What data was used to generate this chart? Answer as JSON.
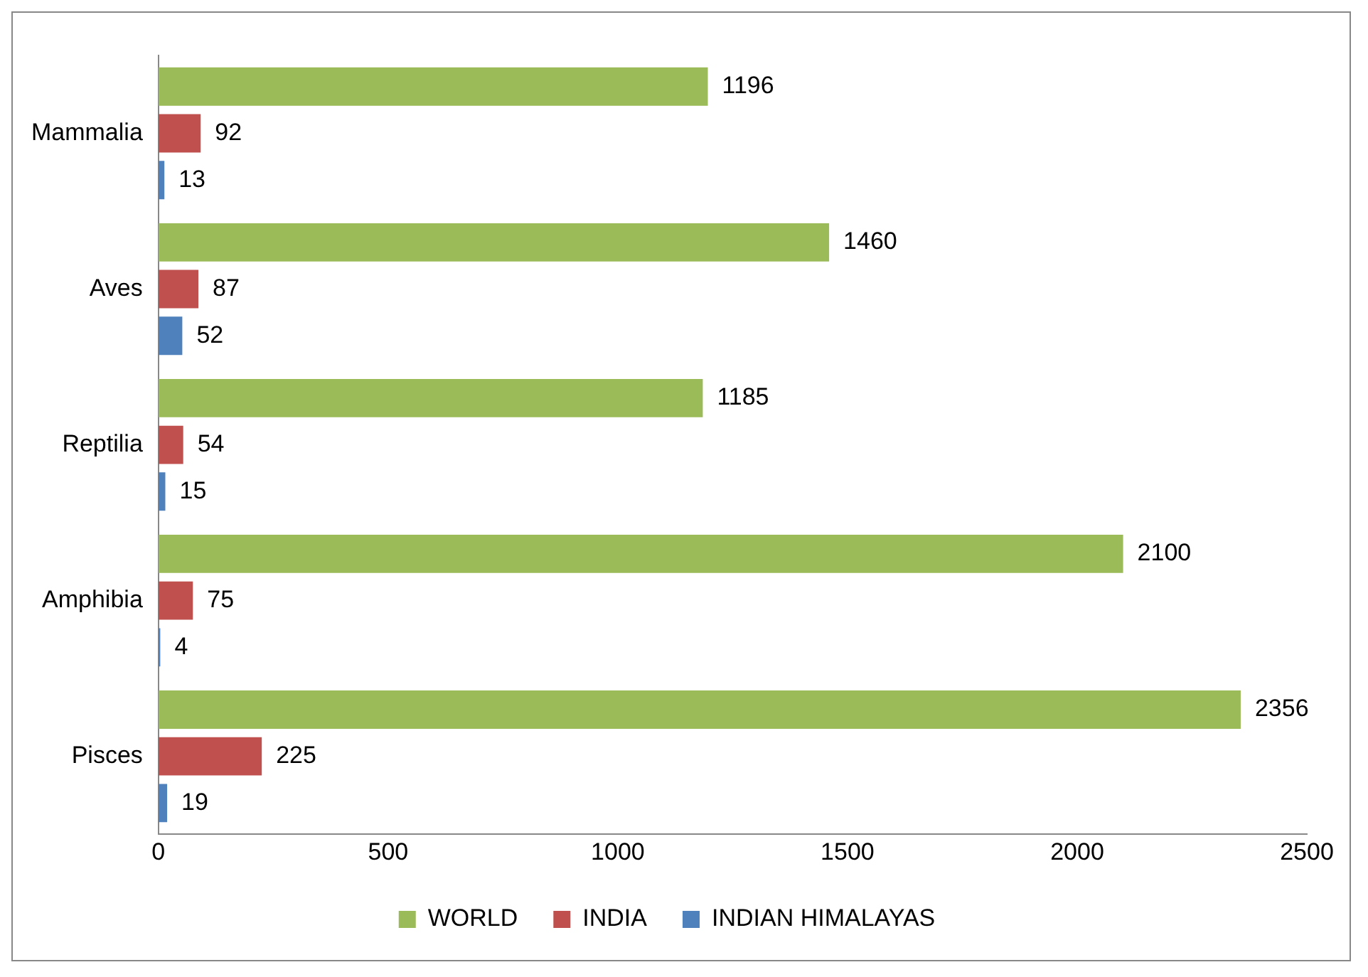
{
  "chart_data": {
    "type": "bar",
    "orientation": "horizontal",
    "categories": [
      "Mammalia",
      "Aves",
      "Reptilia",
      "Amphibia",
      "Pisces"
    ],
    "series": [
      {
        "name": "WORLD",
        "color": "#9bbb59",
        "values": [
          1196,
          1460,
          1185,
          2100,
          2356
        ]
      },
      {
        "name": "INDIA",
        "color": "#c0504d",
        "values": [
          92,
          87,
          54,
          75,
          225
        ]
      },
      {
        "name": "INDIAN HIMALAYAS",
        "color": "#4f81bd",
        "values": [
          13,
          52,
          15,
          4,
          19
        ]
      }
    ],
    "xlim": [
      0,
      2500
    ],
    "xticks": [
      0,
      500,
      1000,
      1500,
      2000,
      2500
    ],
    "grid": false,
    "legend": "bottom",
    "data_labels": true
  }
}
